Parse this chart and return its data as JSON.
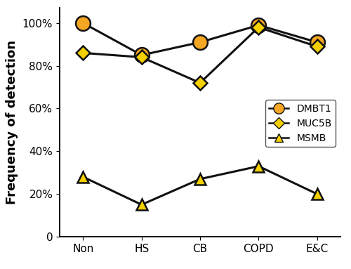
{
  "categories": [
    "Non",
    "HS",
    "CB",
    "COPD",
    "E&C"
  ],
  "DMBT1": [
    100,
    85,
    91,
    99,
    91
  ],
  "MUC5B": [
    86,
    84,
    72,
    98,
    89
  ],
  "MSMB": [
    28,
    15,
    27,
    33,
    20
  ],
  "ylabel": "Frequency of detection",
  "ylim": [
    0,
    107
  ],
  "yticks": [
    0,
    20,
    40,
    60,
    80,
    100
  ],
  "yticklabels": [
    "0",
    "20%",
    "40%",
    "60%",
    "80%",
    "100%"
  ],
  "legend_labels": [
    "DMBT1",
    "MUC5B",
    "MSMB"
  ],
  "dmbt1_color": "#F5A623",
  "muc5b_color": "#F5D000",
  "msmb_color": "#F5D000",
  "line_color": "#111111",
  "legend_fontsize": 10,
  "axis_fontsize": 13,
  "tick_fontsize": 11
}
